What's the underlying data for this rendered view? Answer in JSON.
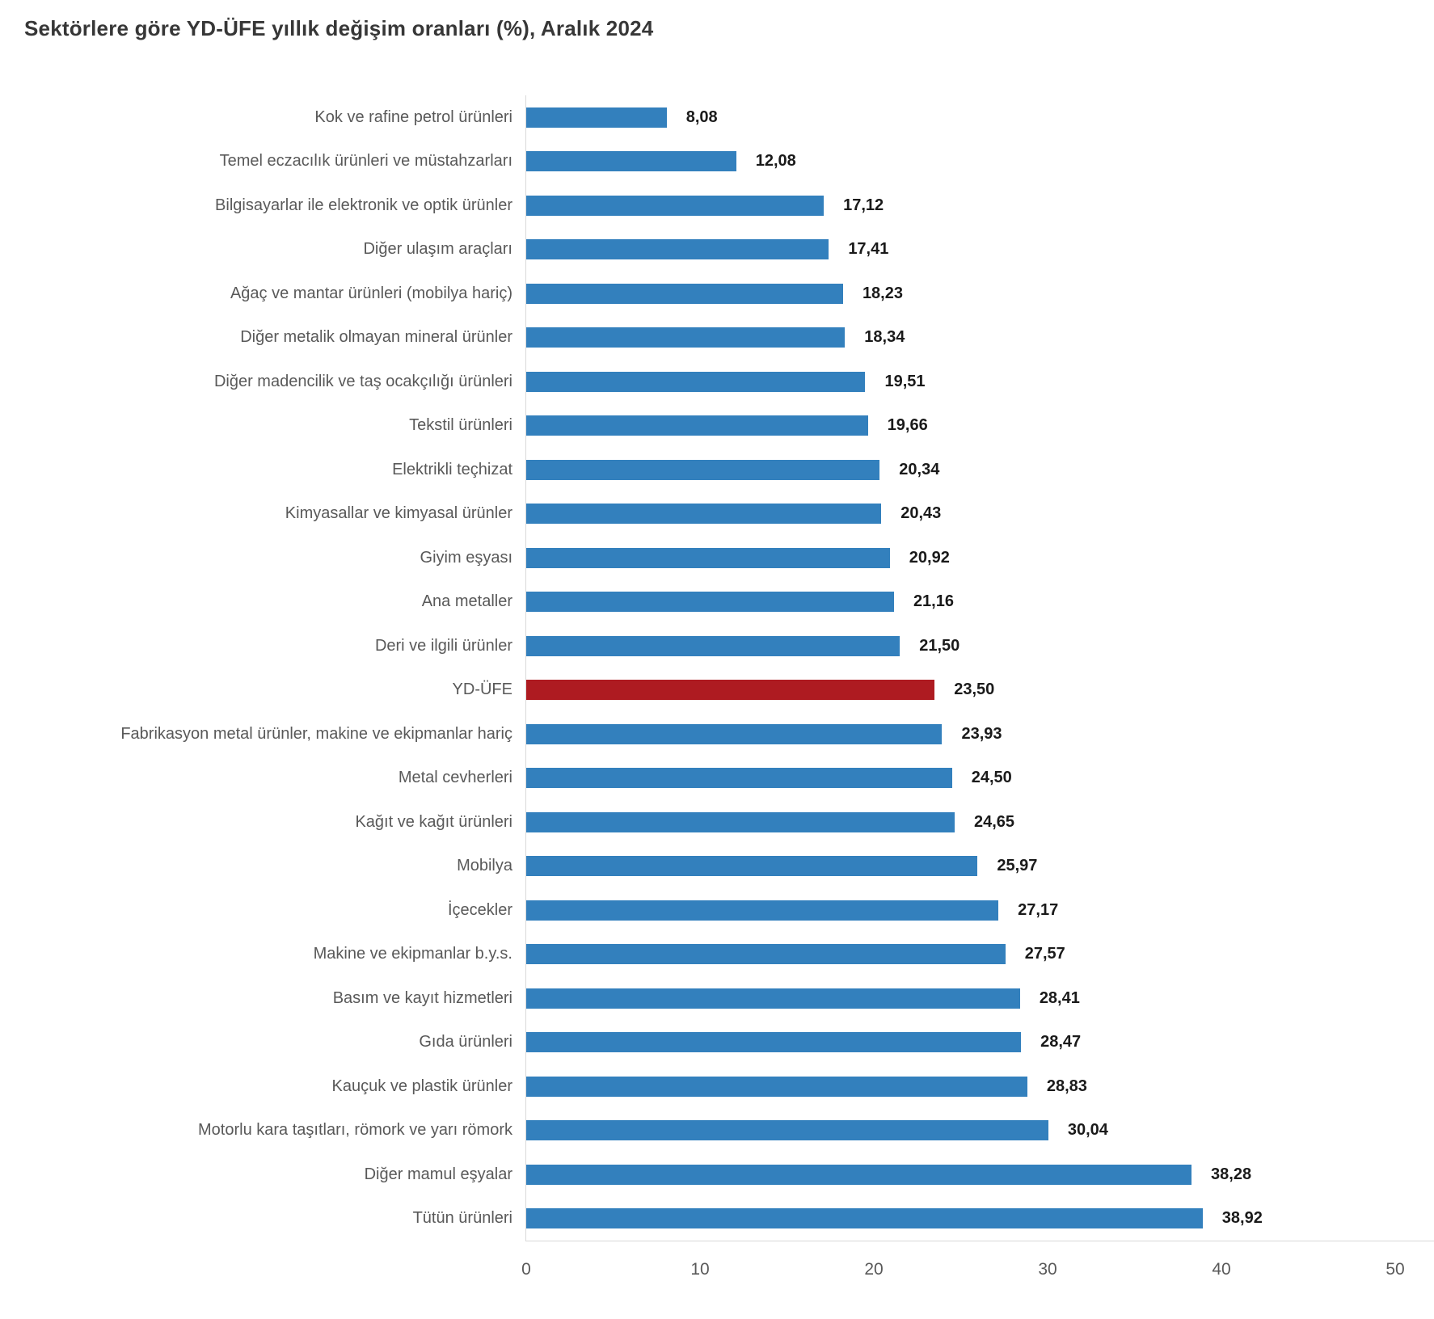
{
  "title": "Sektörlere göre YD-ÜFE yıllık değişim oranları (%), Aralık 2024",
  "chart_data": {
    "type": "bar",
    "orientation": "horizontal",
    "title": "Sektörlere göre YD-ÜFE yıllık değişim oranları (%), Aralık 2024",
    "categories": [
      "Kok ve rafine petrol ürünleri",
      "Temel eczacılık ürünleri ve müstahzarları",
      "Bilgisayarlar ile elektronik ve optik ürünler",
      "Diğer ulaşım araçları",
      "Ağaç ve mantar ürünleri (mobilya hariç)",
      "Diğer metalik olmayan mineral ürünler",
      "Diğer madencilik ve taş ocakçılığı ürünleri",
      "Tekstil ürünleri",
      "Elektrikli teçhizat",
      "Kimyasallar ve kimyasal ürünler",
      "Giyim eşyası",
      "Ana metaller",
      "Deri ve ilgili ürünler",
      "YD-ÜFE",
      "Fabrikasyon metal ürünler, makine ve ekipmanlar hariç",
      "Metal cevherleri",
      "Kağıt ve kağıt ürünleri",
      "Mobilya",
      "İçecekler",
      "Makine ve ekipmanlar b.y.s.",
      "Basım ve kayıt hizmetleri",
      "Gıda ürünleri",
      "Kauçuk ve plastik ürünler",
      "Motorlu kara taşıtları, römork ve yarı römork",
      "Diğer mamul eşyalar",
      "Tütün ürünleri"
    ],
    "values": [
      8.08,
      12.08,
      17.12,
      17.41,
      18.23,
      18.34,
      19.51,
      19.66,
      20.34,
      20.43,
      20.92,
      21.16,
      21.5,
      23.5,
      23.93,
      24.5,
      24.65,
      25.97,
      27.17,
      27.57,
      28.41,
      28.47,
      28.83,
      30.04,
      38.28,
      38.92
    ],
    "value_labels": [
      "8,08",
      "12,08",
      "17,12",
      "17,41",
      "18,23",
      "18,34",
      "19,51",
      "19,66",
      "20,34",
      "20,43",
      "20,92",
      "21,16",
      "21,50",
      "23,50",
      "23,93",
      "24,50",
      "24,65",
      "25,97",
      "27,17",
      "27,57",
      "28,41",
      "28,47",
      "28,83",
      "30,04",
      "38,28",
      "38,92"
    ],
    "highlight_category": "YD-ÜFE",
    "highlight_index": 13,
    "xlim": [
      0,
      50
    ],
    "x_ticks": [
      "0",
      "10",
      "20",
      "30",
      "40",
      "50"
    ],
    "grid": false,
    "legend": false,
    "colors": {
      "bar": "#3380BD",
      "highlight_bar": "#AE1B21",
      "axis_line": "#d9d9d9",
      "category_label": "#595959",
      "value_label": "#1a1a1a",
      "tick_label": "#595959",
      "title": "#373737"
    }
  }
}
